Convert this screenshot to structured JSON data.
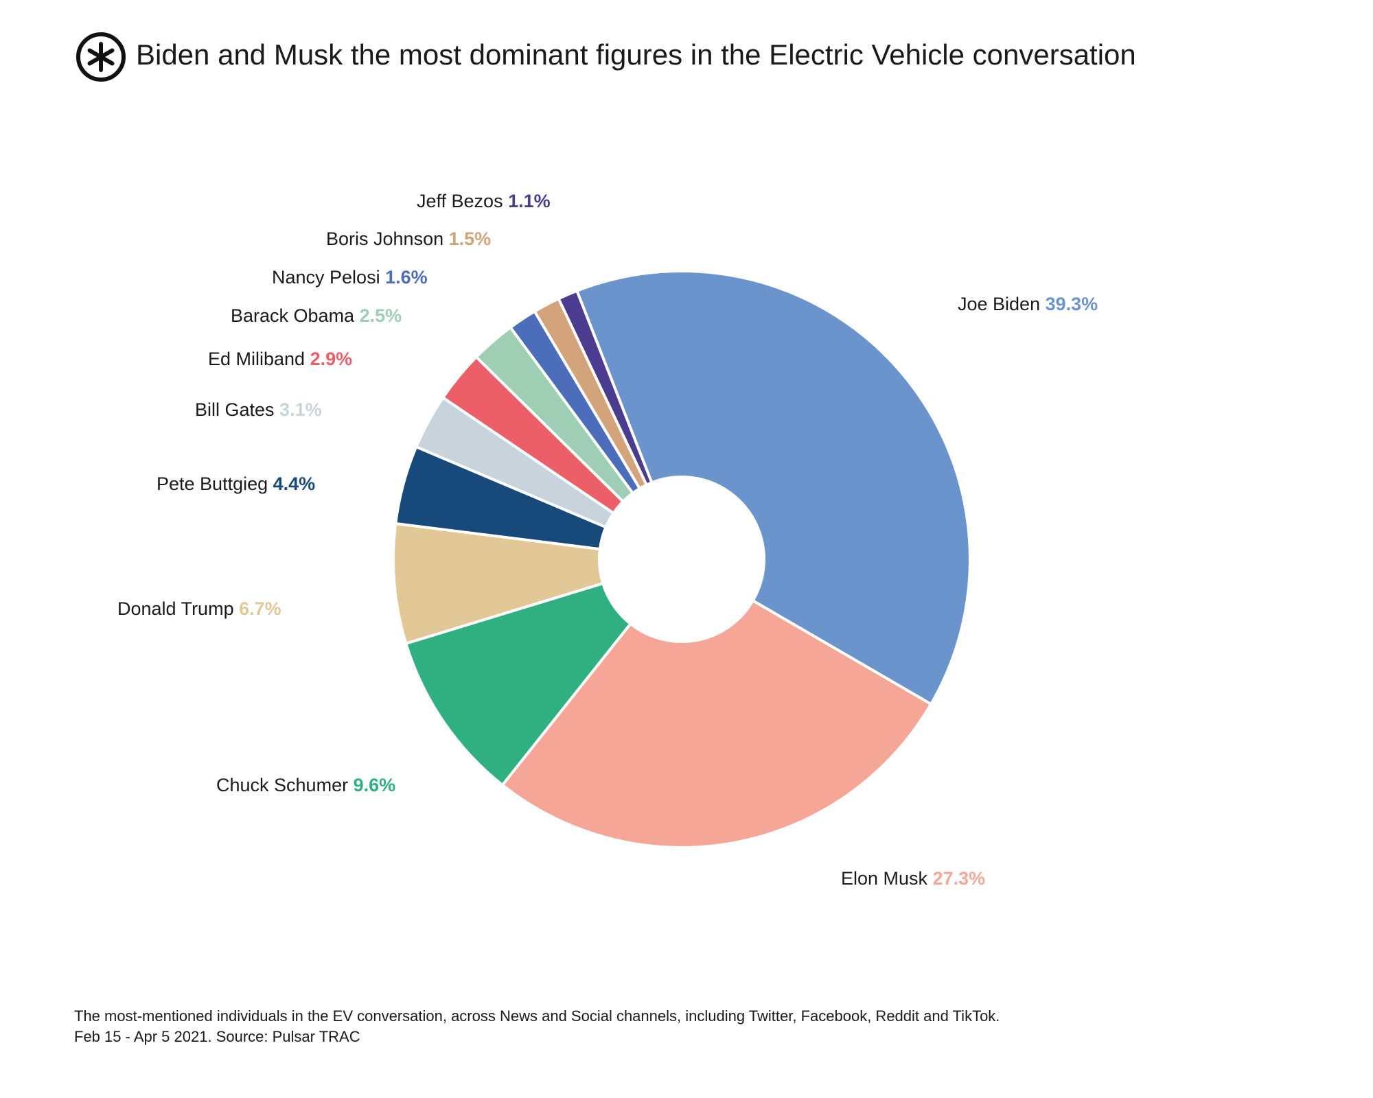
{
  "header": {
    "title": "Biden and Musk the most dominant figures in the Electric Vehicle conversation",
    "logo_icon": "asterisk-circle-icon"
  },
  "chart_data": {
    "type": "pie",
    "style": "donut",
    "title": "Biden and Musk the most dominant figures in the Electric Vehicle conversation",
    "unit": "%",
    "slices": [
      {
        "label": "Joe Biden",
        "value": 39.3,
        "display": "39.3%",
        "color": "#6B94CD"
      },
      {
        "label": "Elon Musk",
        "value": 27.3,
        "display": "27.3%",
        "color": "#F5A697"
      },
      {
        "label": "Chuck Schumer",
        "value": 9.6,
        "display": "9.6%",
        "color": "#30AF80"
      },
      {
        "label": "Donald Trump",
        "value": 6.7,
        "display": "6.7%",
        "color": "#E3C897"
      },
      {
        "label": "Pete Buttgieg",
        "value": 4.4,
        "display": "4.4%",
        "color": "#17497A"
      },
      {
        "label": "Bill Gates",
        "value": 3.1,
        "display": "3.1%",
        "color": "#C8D3DB"
      },
      {
        "label": "Ed Miliband",
        "value": 2.9,
        "display": "2.9%",
        "color": "#EC5E68"
      },
      {
        "label": "Barack Obama",
        "value": 2.5,
        "display": "2.5%",
        "color": "#9ECFB5"
      },
      {
        "label": "Nancy Pelosi",
        "value": 1.6,
        "display": "1.6%",
        "color": "#4C6DBA"
      },
      {
        "label": "Boris Johnson",
        "value": 1.5,
        "display": "1.5%",
        "color": "#D3A47B"
      },
      {
        "label": "Jeff Bezos",
        "value": 1.1,
        "display": "1.1%",
        "color": "#4B3C8F"
      }
    ]
  },
  "footnote": {
    "line1": "The most-mentioned individuals in the EV conversation, across News and Social channels, including Twitter, Facebook, Reddit and TikTok.",
    "line2": "Feb 15 - Apr 5 2021. Source: Pulsar TRAC"
  }
}
